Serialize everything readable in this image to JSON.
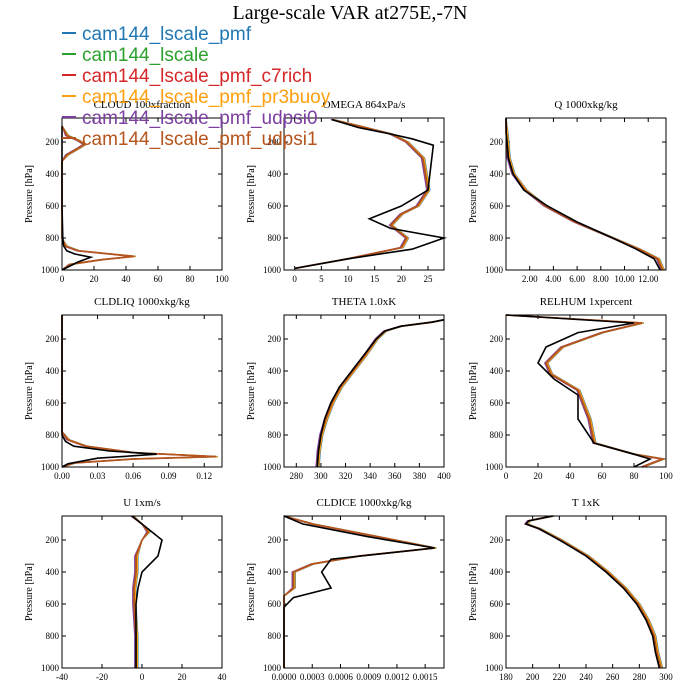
{
  "figure": {
    "title": "Large-scale VAR at275E,-7N"
  },
  "legend": {
    "items": [
      {
        "label": "cam144_lscale_pmf",
        "color": "#1f77b4"
      },
      {
        "label": "cam144_lscale",
        "color": "#2ca02c"
      },
      {
        "label": "cam144_lscale_pmf_c7rich",
        "color": "#d62728"
      },
      {
        "label": "cam144_lscale_pmf_pr3buoy",
        "color": "#ff9f0e"
      },
      {
        "label": "cam144_lscale_pmf_udpsi0",
        "color": "#7b3fa0"
      },
      {
        "label": "cam144_lscale_pmf_udpsi1",
        "color": "#b5541c"
      }
    ],
    "ref_color": "#000000"
  },
  "chart_data": [
    {
      "type": "line",
      "title": "CLOUD 100xfraction",
      "ylabel": "Pressure [hPa]",
      "xlim": [
        0,
        100
      ],
      "ylim": [
        1000,
        50
      ],
      "xticks": [
        "0",
        "20",
        "40",
        "60",
        "80",
        "100"
      ],
      "yticks": [
        "200",
        "400",
        "600",
        "800",
        "1000"
      ],
      "reference": {
        "x": [
          0,
          0,
          0,
          0,
          0.5,
          1,
          3,
          8,
          18,
          10,
          0
        ],
        "y": [
          100,
          200,
          400,
          600,
          800,
          850,
          880,
          900,
          920,
          950,
          1000
        ]
      },
      "model": {
        "x": [
          0,
          3,
          10,
          14,
          10,
          3,
          0,
          0,
          0,
          2,
          10,
          30,
          45,
          25,
          5,
          0
        ],
        "y": [
          100,
          160,
          190,
          215,
          240,
          280,
          320,
          500,
          800,
          850,
          880,
          900,
          915,
          935,
          965,
          1000
        ]
      }
    },
    {
      "type": "line",
      "title": "OMEGA  864xPa/s",
      "ylabel": "Pressure [hPa]",
      "xlim": [
        -2,
        28
      ],
      "ylim": [
        1000,
        50
      ],
      "xticks": [
        "0",
        "5",
        "10",
        "15",
        "20",
        "25"
      ],
      "yticks": [
        "200",
        "400",
        "600",
        "800",
        "1000"
      ],
      "reference": {
        "x": [
          7,
          12,
          18,
          22,
          26,
          25,
          20,
          14,
          18,
          28,
          22,
          10,
          0
        ],
        "y": [
          60,
          110,
          150,
          180,
          220,
          500,
          600,
          680,
          740,
          800,
          870,
          930,
          990
        ]
      },
      "model": {
        "x": [
          7,
          12,
          18,
          21,
          24,
          25,
          23,
          20,
          18,
          21,
          20,
          10,
          0
        ],
        "y": [
          60,
          100,
          150,
          200,
          300,
          500,
          600,
          650,
          720,
          800,
          860,
          930,
          990
        ]
      }
    },
    {
      "type": "line",
      "title": "Q  1000xkg/kg",
      "ylabel": "Pressure [hPa]",
      "xlim": [
        0,
        13.5
      ],
      "ylim": [
        1000,
        50
      ],
      "xticks": [
        "2.00",
        "4.00",
        "6.00",
        "8.00",
        "10.00",
        "12.00"
      ],
      "yticks": [
        "200",
        "400",
        "600",
        "800",
        "1000"
      ],
      "reference": {
        "x": [
          0,
          0.02,
          0.2,
          0.6,
          1.5,
          3.5,
          6,
          9,
          11,
          12.5,
          13
        ],
        "y": [
          50,
          150,
          300,
          400,
          500,
          600,
          700,
          800,
          870,
          930,
          1000
        ]
      },
      "model": {
        "x": [
          0,
          0.02,
          0.2,
          0.6,
          1.6,
          3.3,
          5.8,
          9,
          11.2,
          12.8,
          13.2
        ],
        "y": [
          50,
          150,
          300,
          400,
          500,
          600,
          700,
          800,
          870,
          930,
          1000
        ]
      }
    },
    {
      "type": "line",
      "title": "CLDLIQ  1000xkg/kg",
      "ylabel": "Pressure [hPa]",
      "xlim": [
        0,
        0.135
      ],
      "ylim": [
        1000,
        50
      ],
      "xticks": [
        "0.00",
        "0.03",
        "0.06",
        "0.09",
        "0.12"
      ],
      "yticks": [
        "200",
        "400",
        "600",
        "800",
        "1000"
      ],
      "reference": {
        "x": [
          0,
          0,
          0.003,
          0.01,
          0.04,
          0.08,
          0.03,
          0.005,
          0
        ],
        "y": [
          50,
          800,
          840,
          870,
          900,
          920,
          945,
          980,
          1000
        ]
      },
      "model": {
        "x": [
          0,
          0,
          0.005,
          0.02,
          0.06,
          0.13,
          0.06,
          0.01,
          0
        ],
        "y": [
          50,
          780,
          830,
          870,
          910,
          935,
          950,
          975,
          1000
        ]
      }
    },
    {
      "type": "line",
      "title": "THETA  1.0xK",
      "ylabel": "Pressure [hPa]",
      "xlim": [
        270,
        400
      ],
      "ylim": [
        1000,
        50
      ],
      "xticks": [
        "280",
        "300",
        "320",
        "340",
        "360",
        "380",
        "400"
      ],
      "yticks": [
        "200",
        "400",
        "600",
        "800",
        "1000"
      ],
      "reference": {
        "x": [
          400,
          390,
          365,
          352,
          345,
          335,
          325,
          315,
          308,
          303,
          300,
          298,
          297
        ],
        "y": [
          80,
          95,
          120,
          150,
          200,
          300,
          400,
          500,
          600,
          700,
          800,
          900,
          1000
        ]
      },
      "model": {
        "x": [
          400,
          390,
          365,
          352,
          345,
          336,
          326,
          316,
          309,
          304,
          300,
          298,
          297
        ],
        "y": [
          80,
          95,
          120,
          150,
          200,
          300,
          400,
          500,
          600,
          700,
          800,
          900,
          1000
        ]
      }
    },
    {
      "type": "line",
      "title": "RELHUM  1xpercent",
      "ylabel": "Pressure [hPa]",
      "xlim": [
        0,
        100
      ],
      "ylim": [
        1000,
        50
      ],
      "xticks": [
        "0",
        "20",
        "40",
        "60",
        "80",
        "100"
      ],
      "yticks": [
        "200",
        "400",
        "600",
        "800",
        "1000"
      ],
      "reference": {
        "x": [
          0,
          80,
          45,
          25,
          20,
          30,
          45,
          45,
          55,
          80,
          90,
          80
        ],
        "y": [
          50,
          100,
          160,
          250,
          350,
          450,
          550,
          700,
          850,
          920,
          950,
          1000
        ]
      },
      "model": {
        "x": [
          0,
          85,
          60,
          35,
          25,
          28,
          45,
          52,
          55,
          80,
          98,
          85
        ],
        "y": [
          50,
          100,
          160,
          250,
          350,
          420,
          520,
          700,
          850,
          920,
          950,
          1000
        ]
      }
    },
    {
      "type": "line",
      "title": "U  1xm/s",
      "ylabel": "Pressure [hPa]",
      "xlim": [
        -40,
        40
      ],
      "ylim": [
        1000,
        50
      ],
      "xticks": [
        "-40",
        "-20",
        "0",
        "20",
        "40"
      ],
      "yticks": [
        "200",
        "400",
        "600",
        "800",
        "1000"
      ],
      "reference": {
        "x": [
          -5,
          0,
          5,
          10,
          8,
          0,
          -2,
          -3,
          -3,
          -3
        ],
        "y": [
          50,
          100,
          150,
          200,
          300,
          400,
          500,
          600,
          800,
          1000
        ]
      },
      "model": {
        "x": [
          -5,
          0,
          3,
          0,
          -3,
          -3,
          -4,
          -4,
          -3,
          -3
        ],
        "y": [
          50,
          100,
          150,
          200,
          300,
          400,
          500,
          600,
          800,
          1000
        ]
      }
    },
    {
      "type": "line",
      "title": "CLDICE  1000xkg/kg",
      "ylabel": "Pressure [hPa]",
      "xlim": [
        0,
        0.0017
      ],
      "ylim": [
        1000,
        50
      ],
      "xticks": [
        "0.0000",
        "0.0003",
        "0.0006",
        "0.0009",
        "0.0012",
        "0.0015"
      ],
      "yticks": [
        "200",
        "400",
        "600",
        "800",
        "1000"
      ],
      "reference": {
        "x": [
          0,
          0.0002,
          0.0009,
          0.0016,
          0.0005,
          0.0004,
          0.0005,
          0.0001,
          0,
          0
        ],
        "y": [
          50,
          100,
          180,
          250,
          320,
          400,
          500,
          560,
          620,
          1000
        ]
      },
      "model": {
        "x": [
          0,
          0.0003,
          0.001,
          0.0016,
          0.0008,
          0.0003,
          0.0001,
          0.0001,
          0,
          0
        ],
        "y": [
          50,
          100,
          180,
          250,
          300,
          350,
          400,
          500,
          550,
          1000
        ]
      }
    },
    {
      "type": "line",
      "title": "T  1xK",
      "ylabel": "Pressure [hPa]",
      "xlim": [
        180,
        300
      ],
      "ylim": [
        1000,
        50
      ],
      "xticks": [
        "180",
        "200",
        "220",
        "240",
        "260",
        "280",
        "300"
      ],
      "yticks": [
        "200",
        "400",
        "600",
        "800",
        "1000"
      ],
      "reference": {
        "x": [
          215,
          197,
          195,
          205,
          220,
          240,
          255,
          268,
          278,
          285,
          290,
          292,
          295
        ],
        "y": [
          50,
          80,
          100,
          130,
          200,
          300,
          400,
          500,
          600,
          700,
          800,
          900,
          1000
        ]
      },
      "model": {
        "x": [
          215,
          197,
          195,
          205,
          221,
          241,
          256,
          269,
          279,
          286,
          291,
          293,
          296
        ],
        "y": [
          50,
          80,
          100,
          130,
          200,
          300,
          400,
          500,
          600,
          700,
          800,
          900,
          1000
        ]
      }
    }
  ]
}
